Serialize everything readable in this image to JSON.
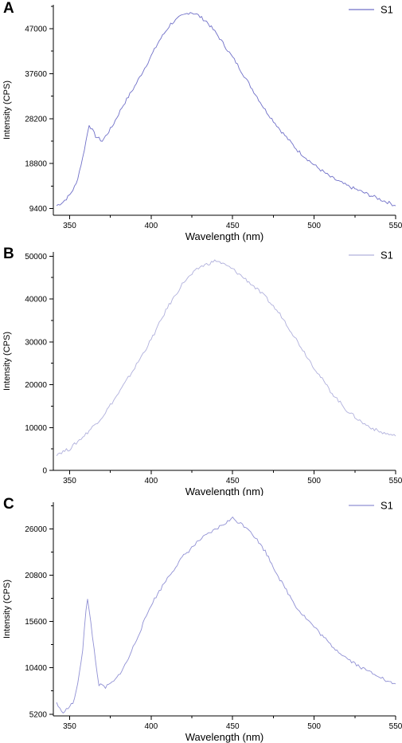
{
  "panels": [
    {
      "letter": "A"
    },
    {
      "letter": "B"
    },
    {
      "letter": "C"
    }
  ],
  "chart_data": [
    {
      "type": "line",
      "xlabel": "Wavelength (nm)",
      "ylabel": "Intensity (CPS)",
      "xlim": [
        340,
        550
      ],
      "ylim": [
        8000,
        52000
      ],
      "xticks": [
        350,
        400,
        450,
        500,
        550
      ],
      "yticks": [
        9400,
        18800,
        28200,
        37600,
        47000
      ],
      "legend": "top-right",
      "series": [
        {
          "name": "S1",
          "color": "#7070c8",
          "x": [
            342,
            346,
            350,
            354,
            358,
            362,
            366,
            370,
            376,
            382,
            390,
            398,
            405,
            412,
            418,
            424,
            428,
            434,
            440,
            446,
            452,
            460,
            470,
            480,
            490,
            500,
            510,
            520,
            530,
            540,
            546,
            550
          ],
          "y": [
            10000,
            10800,
            12200,
            14500,
            20000,
            27000,
            24500,
            23500,
            26500,
            30500,
            35000,
            40000,
            44500,
            48000,
            49500,
            50500,
            50000,
            48500,
            46000,
            43000,
            40000,
            35500,
            30000,
            25500,
            21500,
            18500,
            16000,
            14200,
            12800,
            11400,
            10600,
            10000
          ]
        }
      ]
    },
    {
      "type": "line",
      "xlabel": "Wavelength (nm)",
      "ylabel": "Intensity (CPS)",
      "xlim": [
        340,
        550
      ],
      "ylim": [
        0,
        51000
      ],
      "xticks": [
        350,
        400,
        450,
        500,
        550
      ],
      "yticks": [
        0,
        10000,
        20000,
        30000,
        40000,
        50000
      ],
      "legend": "top-right",
      "series": [
        {
          "name": "S1",
          "color": "#b0b0dc",
          "x": [
            342,
            350,
            360,
            370,
            380,
            390,
            400,
            410,
            420,
            430,
            440,
            450,
            460,
            470,
            480,
            490,
            500,
            510,
            520,
            530,
            540,
            550
          ],
          "y": [
            3800,
            5000,
            8500,
            12500,
            18000,
            24000,
            30500,
            38000,
            44000,
            47500,
            49000,
            47000,
            44000,
            40500,
            36000,
            30000,
            24000,
            18500,
            14000,
            11000,
            9000,
            8000
          ]
        }
      ]
    },
    {
      "type": "line",
      "xlabel": "Wavelength (nm)",
      "ylabel": "Intensity (CPS)",
      "xlim": [
        340,
        550
      ],
      "ylim": [
        5000,
        29000
      ],
      "xticks": [
        350,
        400,
        450,
        500,
        550
      ],
      "yticks": [
        5200,
        10400,
        15600,
        20800,
        26000
      ],
      "legend": "top-right",
      "series": [
        {
          "name": "S1",
          "color": "#9090d4",
          "x": [
            342,
            345,
            348,
            352,
            355,
            358,
            360,
            361,
            363,
            366,
            368,
            372,
            378,
            385,
            392,
            400,
            410,
            420,
            430,
            440,
            450,
            455,
            460,
            470,
            480,
            490,
            500,
            510,
            520,
            530,
            540,
            545,
            550
          ],
          "y": [
            6500,
            5400,
            5700,
            6400,
            8500,
            12500,
            17000,
            18000,
            15500,
            11000,
            8500,
            8200,
            9000,
            11000,
            14000,
            17500,
            20500,
            23000,
            24800,
            26000,
            27200,
            26600,
            26000,
            23500,
            20000,
            17000,
            15000,
            13000,
            11500,
            10300,
            9500,
            8800,
            8600
          ]
        }
      ]
    }
  ]
}
